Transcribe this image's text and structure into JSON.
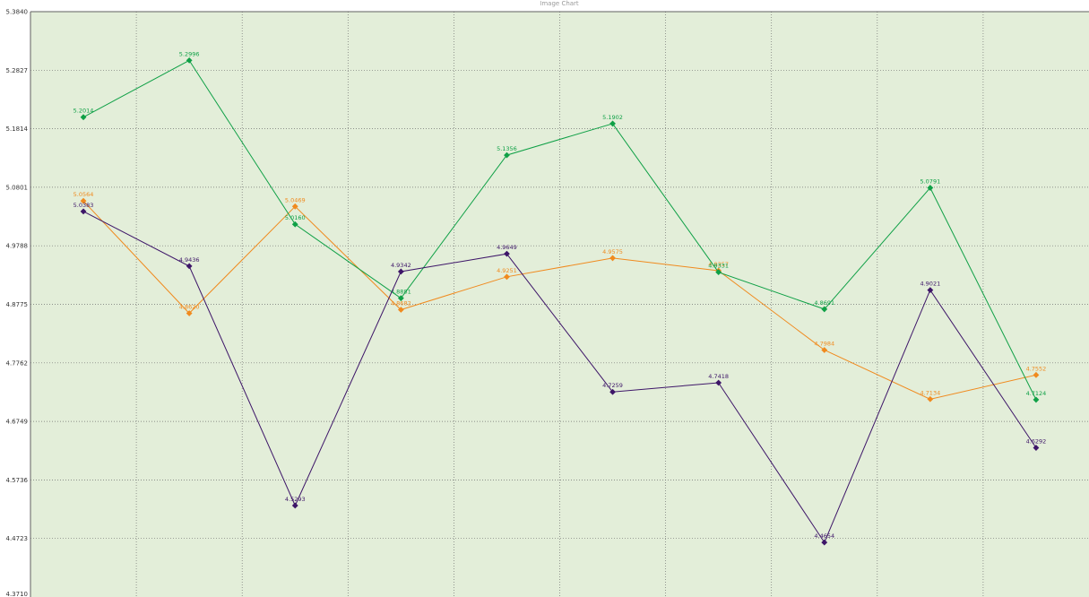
{
  "chart_data": {
    "type": "line",
    "title": "Image Chart",
    "xlabel": "",
    "ylabel": "",
    "ylim": [
      4.371,
      5.384
    ],
    "yticks": [
      "5.3840",
      "5.2827",
      "5.1814",
      "5.0801",
      "4.9788",
      "4.8775",
      "4.7762",
      "4.6749",
      "4.5736",
      "4.4723",
      "4.3710"
    ],
    "grid": true,
    "legend": "none",
    "x": [
      1,
      2,
      3,
      4,
      5,
      6,
      7,
      8,
      9,
      10
    ],
    "series": [
      {
        "color": "#f08a1e",
        "values": [
          5.0564,
          4.862,
          5.0469,
          4.8682,
          4.9251,
          4.9575,
          4.9357,
          4.7984,
          4.7134,
          4.7552
        ],
        "labels": [
          "5.0564",
          "4.8620",
          "5.0469",
          "4.8682",
          "4.9251",
          "4.9575",
          "4.9357",
          "4.7984",
          "4.7134",
          "4.7552"
        ]
      },
      {
        "color": "#0fa046",
        "values": [
          5.2014,
          5.2996,
          5.016,
          4.8881,
          5.1356,
          5.1902,
          4.9331,
          4.8691,
          5.0791,
          4.7124
        ],
        "labels": [
          "5.2014",
          "5.2996",
          "5.0160",
          "4.8881",
          "5.1356",
          "5.1902",
          "4.9331",
          "4.8691",
          "5.0791",
          "4.7124"
        ]
      },
      {
        "color": "#3d1568",
        "values": [
          5.0383,
          4.9436,
          4.5293,
          4.9342,
          4.9649,
          4.7259,
          4.7418,
          4.4654,
          4.9021,
          4.6292
        ],
        "labels": [
          "5.0383",
          "4.9436",
          "4.5293",
          "4.9342",
          "4.9649",
          "4.7259",
          "4.7418",
          "4.4654",
          "4.9021",
          "4.6292"
        ]
      }
    ],
    "colors": {
      "plot_bg": "#e3eed9",
      "grid": "#707070",
      "axis": "#606060",
      "page_bg": "#ffffff"
    }
  }
}
